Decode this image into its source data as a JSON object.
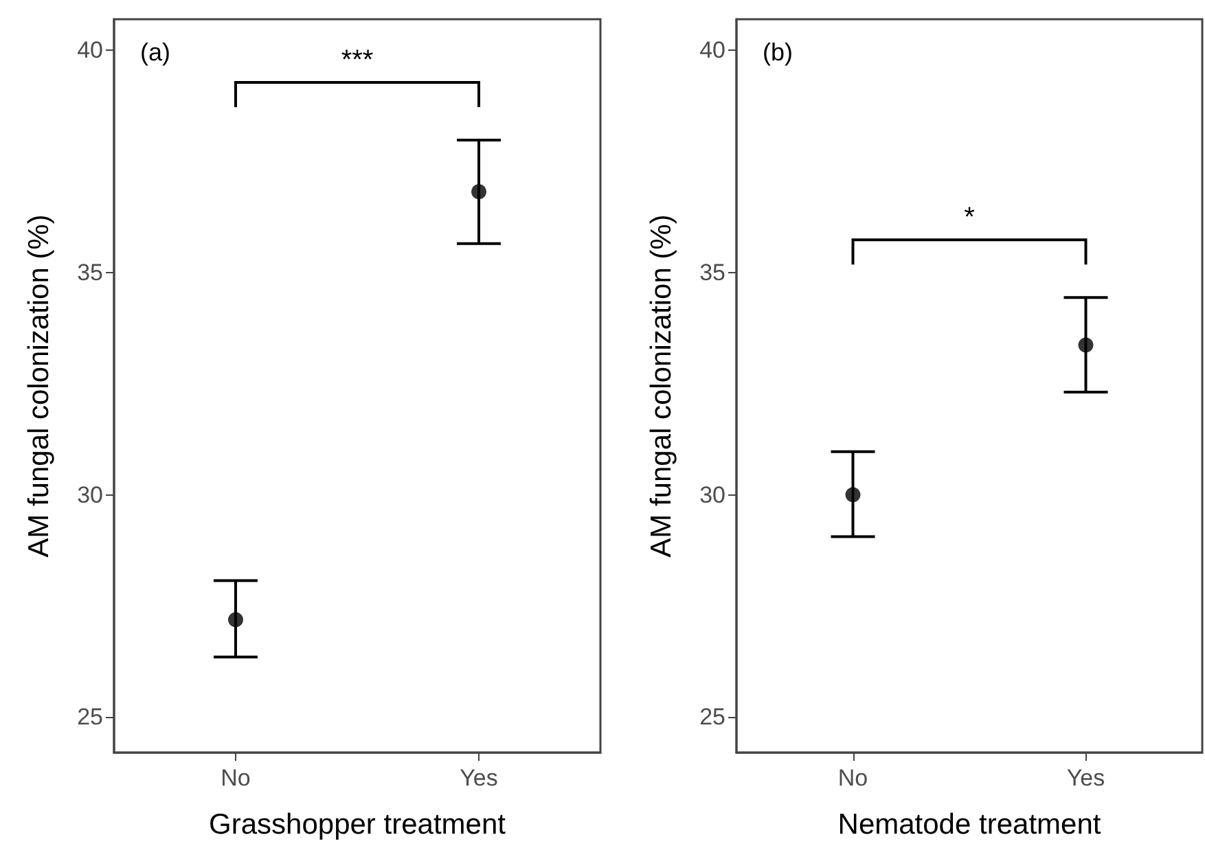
{
  "chart_data": [
    {
      "type": "scatter",
      "title": "(a)",
      "xlabel": "Grasshopper treatment",
      "ylabel": "AM fungal colonization (%)",
      "categories": [
        "No",
        "Yes"
      ],
      "series": [
        {
          "color": "#000000",
          "values": [
            27.19,
            36.82
          ],
          "errors": [
            [
              26.35,
              28.07
            ],
            [
              35.65,
              37.98
            ]
          ]
        }
      ],
      "ylim": [
        24.2,
        40.7
      ],
      "yticks": [
        25,
        30,
        35,
        40
      ],
      "grid": false,
      "marker": "circle",
      "annotations": [
        "***"
      ]
    },
    {
      "type": "scatter",
      "title": "(b)",
      "xlabel": "Nematode treatment",
      "ylabel": "AM fungal colonization (%)",
      "categories": [
        "No",
        "Yes"
      ],
      "series": [
        {
          "color": "#000000",
          "values": [
            30.0,
            33.37
          ],
          "errors": [
            [
              29.06,
              30.97
            ],
            [
              32.31,
              34.44
            ]
          ]
        }
      ],
      "ylim": [
        24.2,
        40.7
      ],
      "yticks": [
        25,
        30,
        35,
        40
      ],
      "grid": false,
      "marker": "circle",
      "annotations": [
        "*"
      ]
    }
  ]
}
